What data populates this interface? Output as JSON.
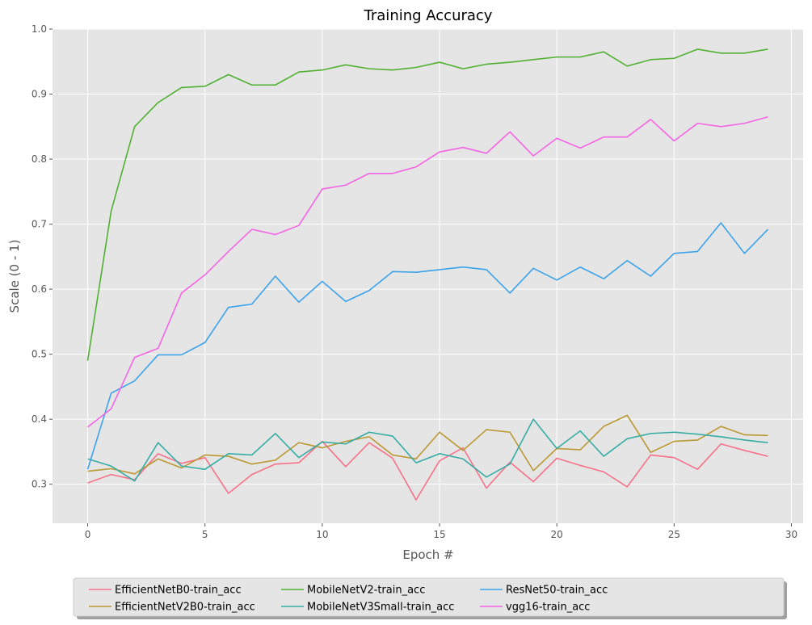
{
  "chart_data": {
    "type": "line",
    "title": "Training Accuracy",
    "xlabel": "Epoch #",
    "ylabel": "Scale (0 - 1)",
    "xlim": [
      -1.5,
      30.5
    ],
    "ylim": [
      0.24,
      1.0
    ],
    "xticks": [
      0,
      5,
      10,
      15,
      20,
      25,
      30
    ],
    "yticks": [
      0.3,
      0.4,
      0.5,
      0.6,
      0.7,
      0.8,
      0.9,
      1.0
    ],
    "grid": true,
    "legend_position": "bottom-center",
    "x": [
      0,
      1,
      2,
      3,
      4,
      5,
      6,
      7,
      8,
      9,
      10,
      11,
      12,
      13,
      14,
      15,
      16,
      17,
      18,
      19,
      20,
      21,
      22,
      23,
      24,
      25,
      26,
      27,
      28,
      29
    ],
    "series": [
      {
        "name": "EfficientNetB0-train_acc",
        "color": "#f77189",
        "values": [
          0.302,
          0.315,
          0.307,
          0.347,
          0.332,
          0.341,
          0.286,
          0.315,
          0.331,
          0.333,
          0.366,
          0.327,
          0.364,
          0.34,
          0.276,
          0.336,
          0.356,
          0.294,
          0.334,
          0.304,
          0.34,
          0.329,
          0.319,
          0.296,
          0.345,
          0.341,
          0.323,
          0.362,
          0.352,
          0.343
        ]
      },
      {
        "name": "EfficientNetV2B0-train_acc",
        "color": "#bb9832",
        "values": [
          0.32,
          0.324,
          0.316,
          0.339,
          0.325,
          0.345,
          0.343,
          0.331,
          0.337,
          0.364,
          0.356,
          0.366,
          0.373,
          0.345,
          0.339,
          0.38,
          0.352,
          0.384,
          0.38,
          0.321,
          0.355,
          0.353,
          0.389,
          0.406,
          0.349,
          0.366,
          0.368,
          0.389,
          0.376,
          0.375
        ]
      },
      {
        "name": "MobileNetV2-train_acc",
        "color": "#50b131",
        "values": [
          0.49,
          0.72,
          0.85,
          0.887,
          0.91,
          0.912,
          0.93,
          0.914,
          0.914,
          0.934,
          0.937,
          0.945,
          0.939,
          0.937,
          0.941,
          0.949,
          0.939,
          0.946,
          0.949,
          0.953,
          0.957,
          0.957,
          0.965,
          0.943,
          0.953,
          0.955,
          0.969,
          0.963,
          0.963,
          0.969
        ]
      },
      {
        "name": "MobileNetV3Small-train_acc",
        "color": "#36ada4",
        "values": [
          0.339,
          0.328,
          0.305,
          0.364,
          0.328,
          0.323,
          0.347,
          0.345,
          0.378,
          0.341,
          0.365,
          0.362,
          0.38,
          0.374,
          0.333,
          0.347,
          0.339,
          0.311,
          0.331,
          0.4,
          0.355,
          0.382,
          0.343,
          0.37,
          0.378,
          0.38,
          0.377,
          0.373,
          0.368,
          0.364
        ]
      },
      {
        "name": "ResNet50-train_acc",
        "color": "#3ba3ec",
        "values": [
          0.323,
          0.44,
          0.459,
          0.499,
          0.499,
          0.518,
          0.572,
          0.577,
          0.62,
          0.58,
          0.612,
          0.581,
          0.598,
          0.627,
          0.626,
          0.63,
          0.634,
          0.63,
          0.594,
          0.632,
          0.614,
          0.634,
          0.616,
          0.644,
          0.62,
          0.655,
          0.658,
          0.702,
          0.655,
          0.692
        ]
      },
      {
        "name": "vgg16-train_acc",
        "color": "#f564e4",
        "values": [
          0.388,
          0.416,
          0.495,
          0.509,
          0.594,
          0.622,
          0.658,
          0.692,
          0.684,
          0.698,
          0.754,
          0.76,
          0.778,
          0.778,
          0.788,
          0.811,
          0.818,
          0.809,
          0.842,
          0.805,
          0.832,
          0.817,
          0.834,
          0.834,
          0.861,
          0.828,
          0.855,
          0.85,
          0.855,
          0.865
        ]
      }
    ]
  }
}
